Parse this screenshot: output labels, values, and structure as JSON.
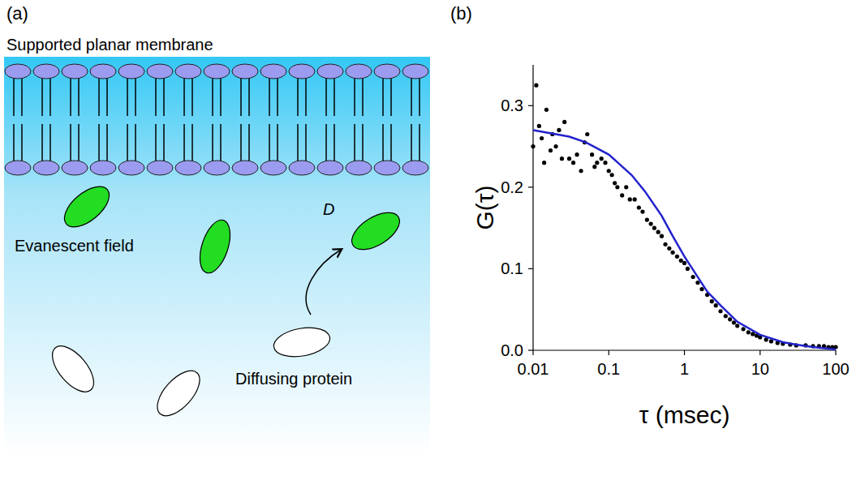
{
  "panels": {
    "a": {
      "label": "(a)",
      "title": "Supported planar membrane",
      "field_label": "Evanescent field",
      "diffusion_label": "D",
      "protein_label": "Diffusing protein"
    }
  },
  "chart_data": {
    "type": "scatter",
    "title": "(b)",
    "xlabel": "τ (msec)",
    "ylabel": "G(τ)",
    "log": "x",
    "xlim": [
      0.01,
      100
    ],
    "xticks": [
      0.01,
      0.1,
      1,
      10,
      100
    ],
    "ylim": [
      0,
      0.35
    ],
    "yticks": [
      {
        "value": 0,
        "label": "0.0"
      },
      {
        "value": 0.1,
        "label": "0.1"
      },
      {
        "value": 0.2,
        "label": "0.2"
      },
      {
        "value": 0.3,
        "label": "0.3"
      }
    ],
    "grid": false,
    "series": [
      {
        "type": "scatter",
        "color": "#000000",
        "marker": "circle",
        "x": [
          0.01,
          0.011,
          0.012,
          0.013,
          0.014,
          0.015,
          0.017,
          0.018,
          0.02,
          0.022,
          0.024,
          0.026,
          0.03,
          0.034,
          0.038,
          0.043,
          0.048,
          0.052,
          0.06,
          0.065,
          0.07,
          0.08,
          0.09,
          0.1,
          0.11,
          0.12,
          0.13,
          0.15,
          0.17,
          0.19,
          0.22,
          0.25,
          0.28,
          0.32,
          0.36,
          0.4,
          0.45,
          0.5,
          0.56,
          0.63,
          0.7,
          0.8,
          0.9,
          1.0,
          1.1,
          1.3,
          1.5,
          1.7,
          2.0,
          2.3,
          2.6,
          3.0,
          3.5,
          4.0,
          4.5,
          5,
          6,
          7,
          8,
          9,
          10,
          12,
          14,
          17,
          20,
          25,
          30,
          40,
          50,
          60,
          70,
          80,
          90,
          100
        ],
        "values": [
          0.25,
          0.325,
          0.275,
          0.26,
          0.23,
          0.295,
          0.245,
          0.265,
          0.25,
          0.27,
          0.235,
          0.28,
          0.235,
          0.23,
          0.24,
          0.22,
          0.255,
          0.265,
          0.24,
          0.225,
          0.23,
          0.235,
          0.23,
          0.22,
          0.215,
          0.205,
          0.2,
          0.19,
          0.2,
          0.185,
          0.185,
          0.175,
          0.17,
          0.16,
          0.155,
          0.15,
          0.145,
          0.14,
          0.13,
          0.125,
          0.12,
          0.115,
          0.11,
          0.107,
          0.1,
          0.09,
          0.083,
          0.075,
          0.068,
          0.06,
          0.055,
          0.048,
          0.042,
          0.038,
          0.034,
          0.03,
          0.026,
          0.022,
          0.02,
          0.018,
          0.016,
          0.013,
          0.011,
          0.009,
          0.008,
          0.007,
          0.006,
          0.006,
          0.005,
          0.005,
          0.005,
          0.004,
          0.004,
          0.004
        ]
      },
      {
        "type": "line",
        "color": "#2222cc",
        "line_style": "solid",
        "x": [
          0.01,
          0.02,
          0.03,
          0.05,
          0.1,
          0.2,
          0.3,
          0.5,
          0.7,
          1,
          2,
          3,
          5,
          10,
          20,
          30,
          50,
          100
        ],
        "values": [
          0.27,
          0.265,
          0.262,
          0.255,
          0.24,
          0.215,
          0.195,
          0.165,
          0.14,
          0.115,
          0.072,
          0.055,
          0.035,
          0.019,
          0.01,
          0.007,
          0.004,
          0.001
        ]
      }
    ]
  }
}
